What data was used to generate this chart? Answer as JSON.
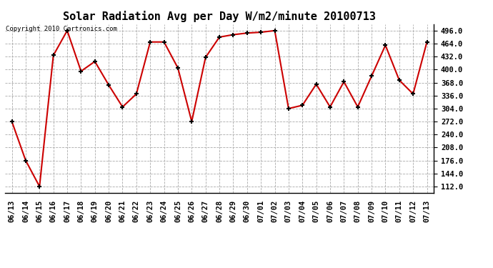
{
  "title": "Solar Radiation Avg per Day W/m2/minute 20100713",
  "copyright": "Copyright 2010 Cartronics.com",
  "dates": [
    "06/13",
    "06/14",
    "06/15",
    "06/16",
    "06/17",
    "06/18",
    "06/19",
    "06/20",
    "06/21",
    "06/22",
    "06/23",
    "06/24",
    "06/25",
    "06/26",
    "06/27",
    "06/28",
    "06/29",
    "06/30",
    "07/01",
    "07/02",
    "07/03",
    "07/04",
    "07/05",
    "07/06",
    "07/07",
    "07/08",
    "07/09",
    "07/10",
    "07/11",
    "07/12",
    "07/13"
  ],
  "values": [
    272.0,
    176.0,
    112.0,
    435.0,
    496.0,
    396.0,
    420.0,
    362.0,
    308.0,
    340.0,
    468.0,
    468.0,
    404.0,
    272.0,
    430.0,
    480.0,
    486.0,
    490.0,
    492.0,
    496.0,
    304.0,
    312.0,
    364.0,
    308.0,
    370.0,
    308.0,
    384.0,
    460.0,
    374.0,
    340.0,
    468.0
  ],
  "ylim": [
    96.0,
    512.0
  ],
  "yticks": [
    112.0,
    144.0,
    176.0,
    208.0,
    240.0,
    272.0,
    304.0,
    336.0,
    368.0,
    400.0,
    432.0,
    464.0,
    496.0
  ],
  "line_color": "#cc0000",
  "marker_color": "#000000",
  "bg_color": "#ffffff",
  "grid_color": "#aaaaaa",
  "title_fontsize": 11,
  "tick_fontsize": 7.5,
  "copyright_fontsize": 6.5
}
